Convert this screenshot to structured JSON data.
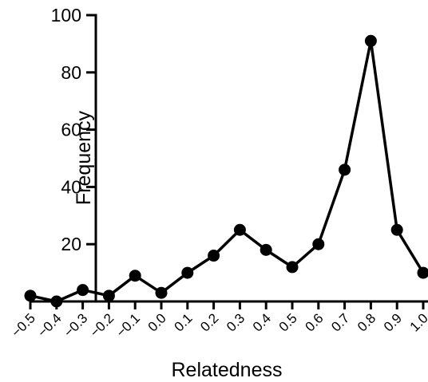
{
  "chart_data": {
    "type": "line",
    "x": [
      -0.5,
      -0.4,
      -0.3,
      -0.2,
      -0.1,
      0.0,
      0.1,
      0.2,
      0.3,
      0.4,
      0.5,
      0.6,
      0.7,
      0.8,
      0.9,
      1.0
    ],
    "x_tick_labels": [
      "−0.5",
      "−0.4",
      "−0.3",
      "−0.2",
      "−0.1",
      "0.0",
      "0.1",
      "0.2",
      "0.3",
      "0.4",
      "0.5",
      "0.6",
      "0.7",
      "0.8",
      "0.9",
      "1.0"
    ],
    "series": [
      {
        "values": [
          2,
          0,
          4,
          2,
          9,
          3,
          10,
          16,
          25,
          18,
          12,
          20,
          46,
          91,
          25,
          10
        ]
      }
    ],
    "y_ticks": [
      20,
      40,
      60,
      80,
      100
    ],
    "y_tick_labels": [
      "20",
      "40",
      "60",
      "80",
      "100"
    ],
    "title": "",
    "xlabel": "Relatedness",
    "ylabel": "Frequency",
    "xlim": [
      -0.5,
      1.0
    ],
    "ylim": [
      0,
      100
    ],
    "grid": false,
    "legend": "none",
    "colors": {
      "line": "#000000",
      "marker": "#000000"
    }
  }
}
